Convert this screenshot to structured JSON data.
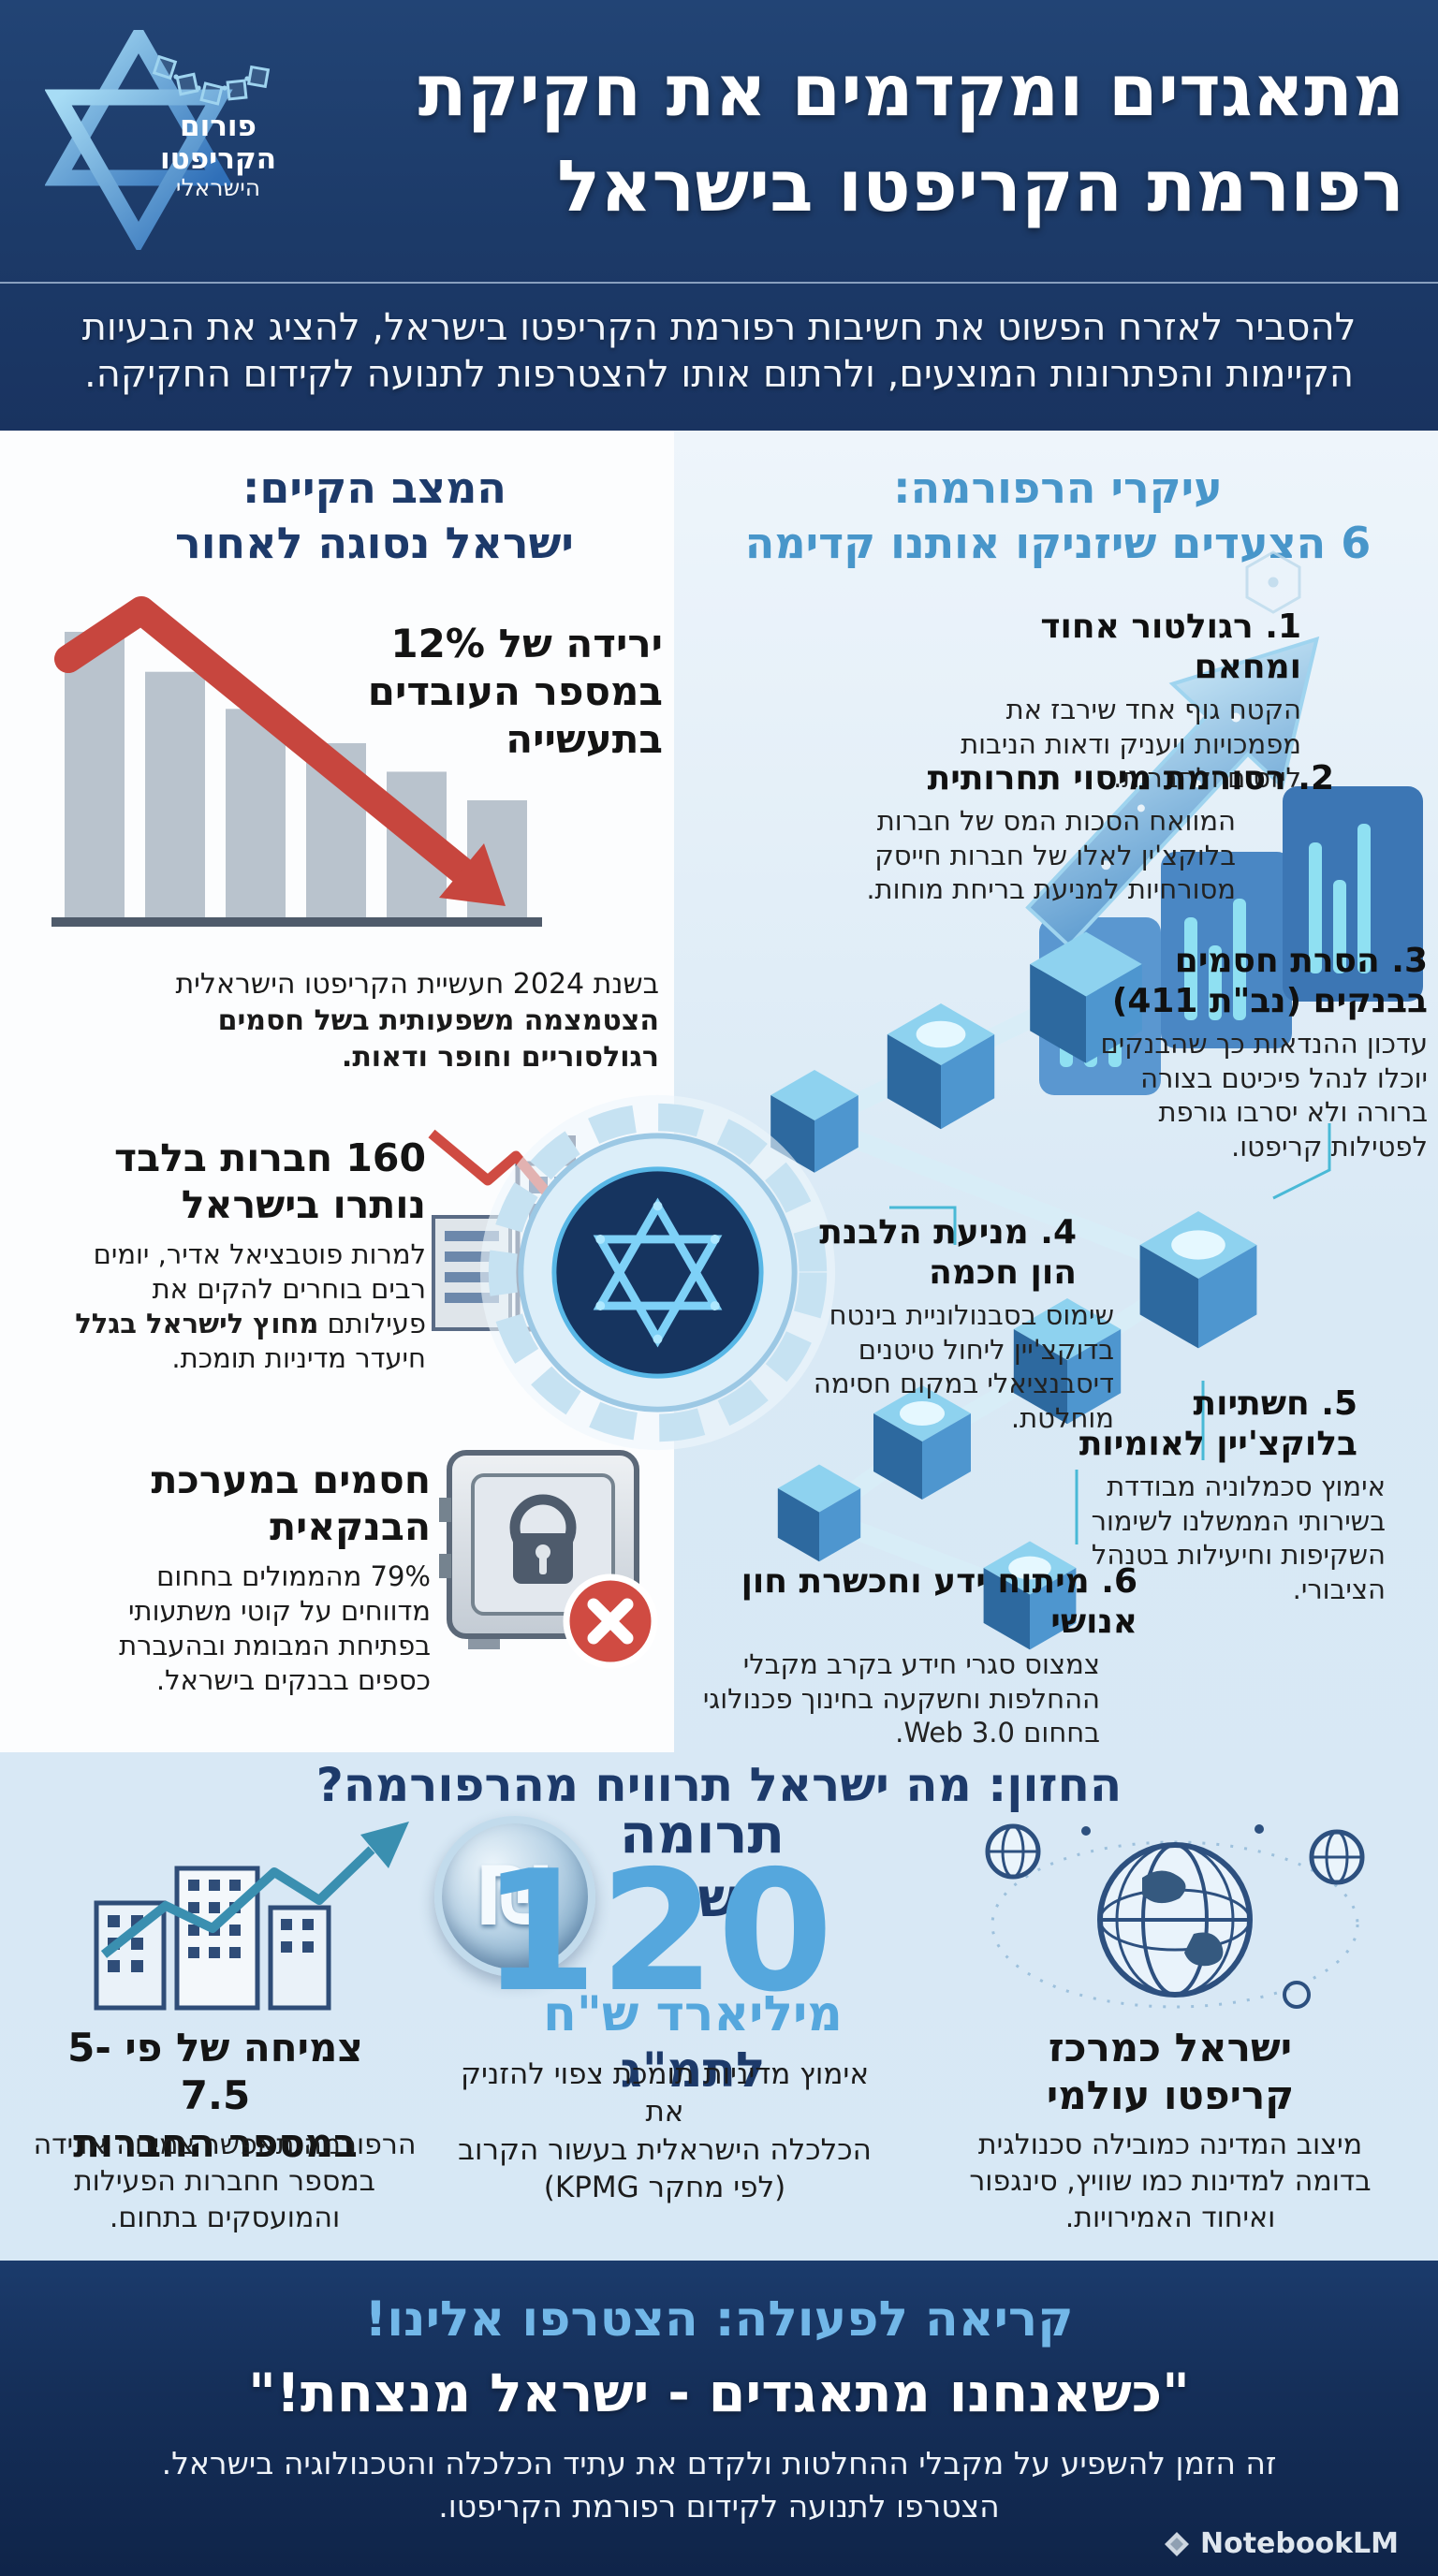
{
  "header": {
    "forum_logo": {
      "line1": "פורום",
      "line2": "הקריפטו",
      "line3": "הישראלי"
    },
    "title_line1": "מתאגדים ומקדמים את חקיקת",
    "title_line2": "רפורמת הקריפטו בישראל",
    "subtitle_line1": "להסביר לאזרח הפשוט את חשיבות רפורמת הקריפטו בישראל, להציג את הבעיות",
    "subtitle_line2": "הקיימות והפתרונות המוצעים, ולרתום אותו להצטרפות לתנועה לקידום החקיקה."
  },
  "current_state": {
    "heading_line1": "המצב הקיים:",
    "heading_line2": "ישראל נסוגה לאחור",
    "stat_line1": "ירידה של 12%",
    "stat_line2": "במספר העובדים",
    "stat_line3": "בתעשייה",
    "chart_caption_regular": "בשנת 2024 חעשיית הקריפטו הישראלית",
    "chart_caption_bold": "הצטמצמה משפעותית בשל חסמים רגולסוריים וחופר ודאות.",
    "companies_heading_line1": "160 חברות בלבד",
    "companies_heading_line2": "נותרו בישראל",
    "companies_body_pre": "למרות פוטבציאל אדיר, יומים רבים בוחרים להקים את פעילותם ",
    "companies_body_bold": "מחוץ לישראל בגלל",
    "companies_body_post": " חיעדר מדיניות תומכת.",
    "banking_heading_line1": "חסמים במערכת",
    "banking_heading_line2": "הבנקאית",
    "banking_body": "79% מהממולים בחחום מדווחים על קוטי משתעותי בפתיחת המבומת ובהעברת כספים בבנקים בישראל."
  },
  "reform": {
    "heading_line1": "עיקרי הרפורמה:",
    "heading_line2": "6 הצעדים שיזניקו אותנו קדימה",
    "steps": [
      {
        "title": "1. רגולטור אחוד ומחאם",
        "body": "הקטח גוף אחד שירבז את מפמכויות ויעניק ודאות הניבות ליזסום ולחברות."
      },
      {
        "title": "2. רסורמת מיסוי תחרותית",
        "body": "המוואח הסכות המס של חברות בלוקצ'ין לאלו של חברות חייסק מסורחיות למניעת בריחת מוחות."
      },
      {
        "title": "3. הסרת חסמים בבנקים (נב\"ת 411)",
        "body": "עדכון ההנדאות כך שהבנקים יוכלו לנהל פיכיטם בצורה ברורה ולא יסרבו גורפת לפטילות קריפטו."
      },
      {
        "title": "4. מניעת הלבנת הון חכמה",
        "body": "שימוס בסבנולוניית בינטח בדוקצ'יין ליחול טיטנים דיסבנציאלי במקום חסימה מוחלטת."
      },
      {
        "title": "5. חשתיות בלוקצ'יין לאומיות",
        "body": "אימוץ סכמלוניה מבודדת בשירותי הממשלנו לשימור השקיפות וחיעילות בטנהל הציבורי."
      },
      {
        "title": "6. מיתוח ידע וחכשרת חון אנושי",
        "body": "צמצוס סגרי חידע בקרב מקבלי ההחלפות וחשקעה בחינוך פכנולוגי בחחום Web 3.0."
      }
    ]
  },
  "vision": {
    "heading": "החזון: מה ישראל תרוויח מהרפורמה?",
    "growth_heading_line1": "צמיחה של פי 5-7.5",
    "growth_heading_line2": "במספר החברות",
    "growth_body": "הרפורמה תאפשר צמיחה אדידה במספר חחברות הפעילות והמועסקים בתחום.",
    "contribution_prefix": "תרומה של",
    "contribution_number": "120",
    "contribution_unit_light": "מיליארד ש\"ח",
    "contribution_unit_dark": "לתמ\"ג",
    "contribution_body_line1": "אימוץ מדיניות תומכת צפוי להזניק את",
    "contribution_body_line2": "הכלכלה הישראלית בעשור הקרוב",
    "contribution_body_line3": "(לפי מחקר KPMG)",
    "global_heading_line1": "ישראל כמרכז",
    "global_heading_line2": "קריפטו עולמי",
    "global_body": "מיצוב המדינה כמובילה סכנולגית בדומה למדינות כמו שוויץ, סינגפור ואיחוד האמירויות."
  },
  "footer": {
    "cta": "קריאה לפעולה: הצטרפו אלינו!",
    "slogan": "\"כשאנחנו מתאגדים - ישראל מנצחת!\"",
    "body_line1": "זה הזמן להשפיע על מקבלי ההחלטות ולקדם את עתיד הכלכלה והטכנולוגיה בישראל.",
    "body_line2": "הצטרפו לתנועה לקידום רפורמת הקריפטו.",
    "watermark": "NotebookLM"
  },
  "colors": {
    "header_navy": "#1c3a68",
    "footer_navy": "#10264c",
    "accent_blue": "#4896ca",
    "light_blue_text": "#72b7e8",
    "number_blue": "#55a7dd",
    "navy_text": "#1d3a6a",
    "alert_red": "#c7463e",
    "panel_light_blue": "#d9e9f5"
  },
  "chart_data": {
    "type": "bar",
    "title": "",
    "categories": [
      "",
      "",
      "",
      "",
      "",
      ""
    ],
    "values": [
      100,
      86,
      73,
      61,
      51,
      41
    ],
    "ylim": [
      0,
      100
    ],
    "annotation": "ירידה של 12% במספר העובדים בתעשייה",
    "trend": "down",
    "style": "decorative gray declining bars with red downward trend arrow"
  }
}
